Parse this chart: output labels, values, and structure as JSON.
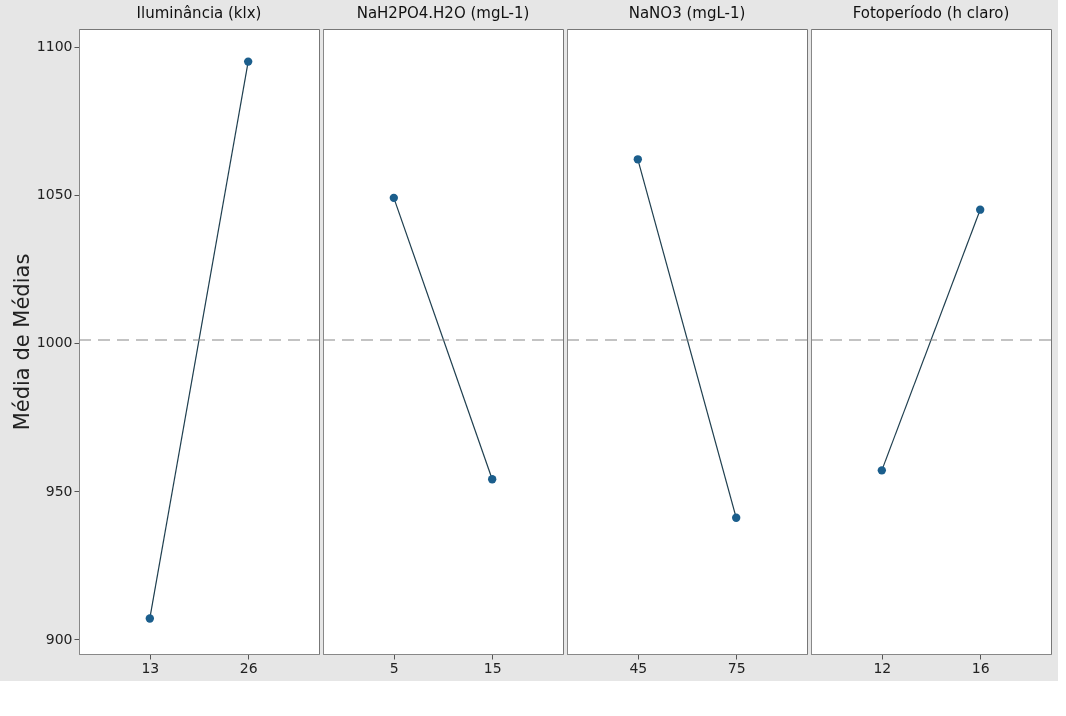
{
  "chart_data": [
    {
      "type": "line",
      "title": "Iluminância (klx)",
      "ylabel": "Média de Médias",
      "categories": [
        "13",
        "26"
      ],
      "values": [
        907,
        1095
      ],
      "color": "#1b5e8c",
      "ylim": [
        895,
        1106
      ],
      "yticks": [
        900,
        950,
        1000,
        1050,
        1100
      ],
      "marker": "circle",
      "grid": false,
      "ref_lines": [
        {
          "axis": "y",
          "value": 1001,
          "color": "#888888",
          "line_style": "dashed"
        }
      ]
    },
    {
      "type": "line",
      "title": "NaH2PO4.H2O (mgL-1)",
      "categories": [
        "5",
        "15"
      ],
      "values": [
        1049,
        954
      ],
      "color": "#1b5e8c",
      "ylim": [
        895,
        1106
      ],
      "yticks": [
        900,
        950,
        1000,
        1050,
        1100
      ],
      "tick_labels": "x",
      "marker": "circle",
      "grid": false,
      "ref_lines": [
        {
          "axis": "y",
          "value": 1001,
          "color": "#888888",
          "line_style": "dashed"
        }
      ]
    },
    {
      "type": "line",
      "title": "NaNO3 (mgL-1)",
      "categories": [
        "45",
        "75"
      ],
      "values": [
        1062,
        941
      ],
      "color": "#1b5e8c",
      "ylim": [
        895,
        1106
      ],
      "yticks": [
        900,
        950,
        1000,
        1050,
        1100
      ],
      "tick_labels": "x",
      "marker": "circle",
      "grid": false,
      "ref_lines": [
        {
          "axis": "y",
          "value": 1001,
          "color": "#888888",
          "line_style": "dashed"
        }
      ]
    },
    {
      "type": "line",
      "title": "Fotoperíodo (h claro)",
      "categories": [
        "12",
        "16"
      ],
      "values": [
        957,
        1045
      ],
      "color": "#1b5e8c",
      "ylim": [
        895,
        1106
      ],
      "yticks": [
        900,
        950,
        1000,
        1050,
        1100
      ],
      "tick_labels": "x",
      "marker": "circle",
      "grid": false,
      "ref_lines": [
        {
          "axis": "y",
          "value": 1001,
          "color": "#888888",
          "line_style": "dashed"
        }
      ]
    }
  ]
}
